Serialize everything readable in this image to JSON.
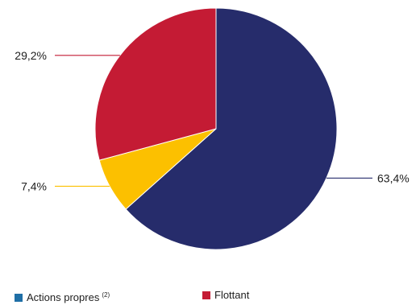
{
  "chart_data": {
    "type": "pie",
    "title": "",
    "slices": [
      {
        "label": "",
        "value": 63.4,
        "value_label": "63,4%",
        "color": "#262c6b"
      },
      {
        "label": "",
        "value": 7.4,
        "value_label": "7,4%",
        "color": "#fcc000"
      },
      {
        "label": "",
        "value": 29.2,
        "value_label": "29,2%",
        "color": "#c41b34"
      }
    ],
    "legend": {
      "placement": "bottom",
      "items": [
        {
          "label": "Actions propres",
          "note": "(2)",
          "color": "#1f6fa6"
        },
        {
          "label": "Flottant",
          "color": "#c41b34"
        }
      ]
    }
  }
}
